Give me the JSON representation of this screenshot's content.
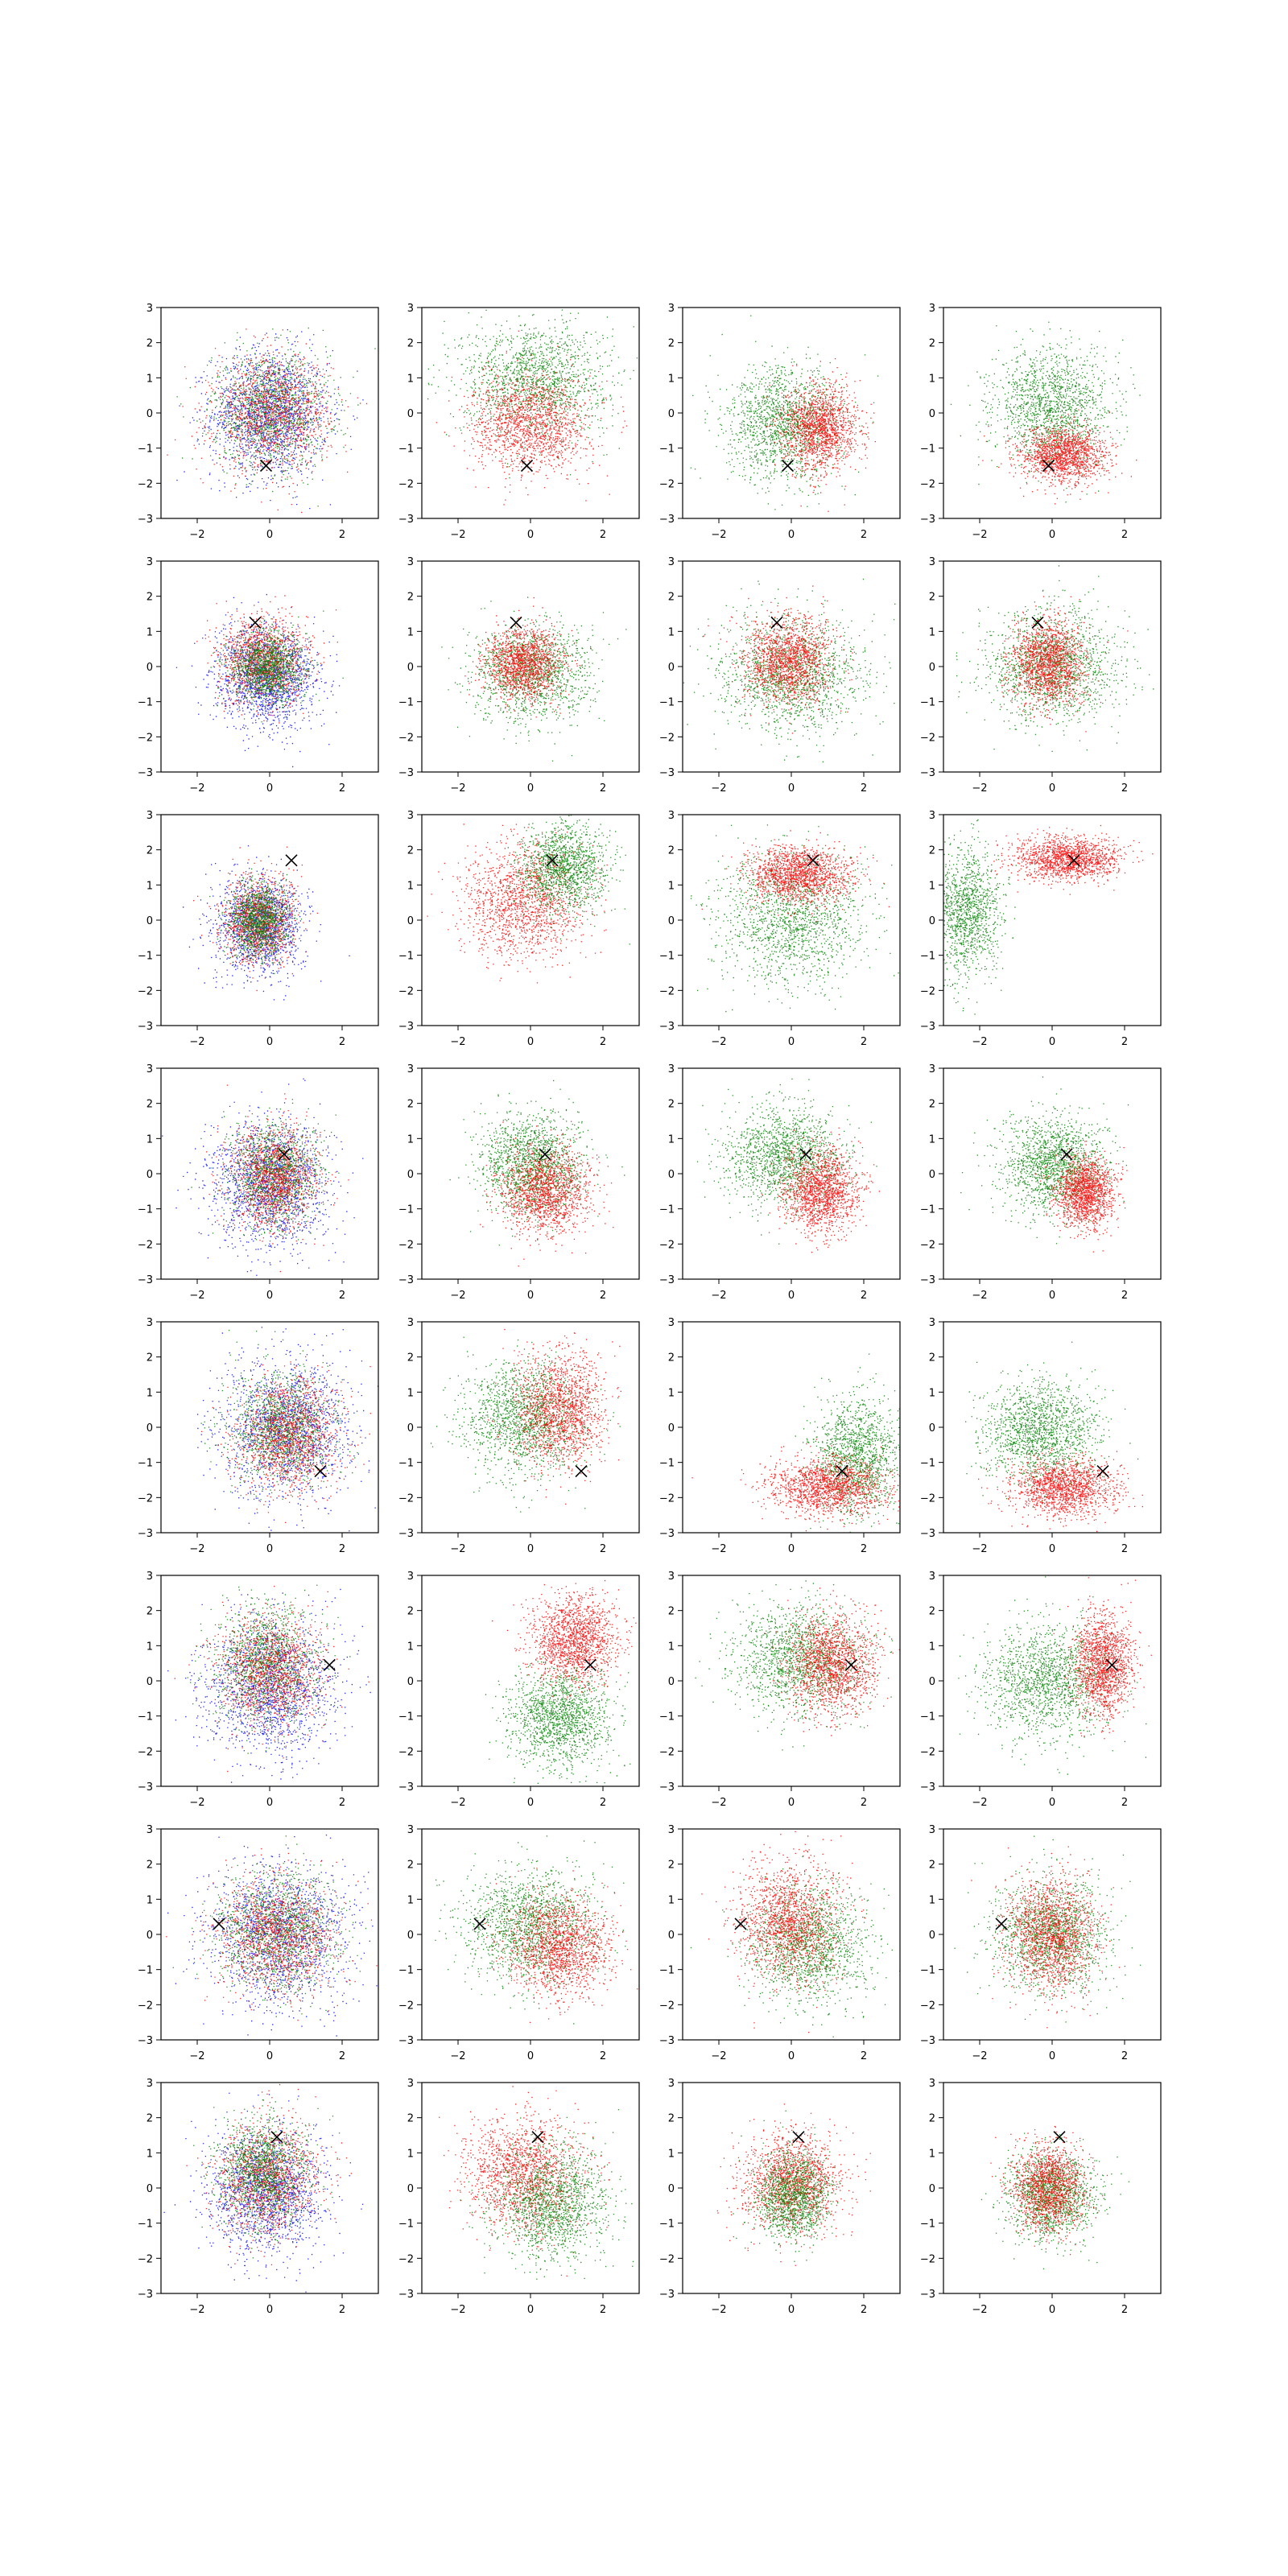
{
  "chart_data": {
    "type": "scatter",
    "layout": {
      "rows": 8,
      "cols": 4
    },
    "xlim": [
      -3,
      3
    ],
    "ylim": [
      -3,
      3
    ],
    "xticks": [
      -2,
      0,
      2
    ],
    "yticks": [
      -3,
      -2,
      -1,
      0,
      1,
      2,
      3
    ],
    "colors": {
      "red": "#ff0000",
      "green": "#008000",
      "blue": "#0000ff",
      "marker": "#000000"
    },
    "grid": false,
    "legend": "none",
    "marker": "x",
    "rows": [
      {
        "marker": [
          -0.1,
          -1.5
        ],
        "panels": [
          {
            "series": [
              {
                "color": "blue",
                "n": 1600,
                "cx": 0.0,
                "cy": 0.0,
                "sx": 0.8,
                "sy": 0.9
              },
              {
                "color": "green",
                "n": 1300,
                "cx": 0.0,
                "cy": 0.1,
                "sx": 0.8,
                "sy": 0.8
              },
              {
                "color": "red",
                "n": 1300,
                "cx": 0.05,
                "cy": 0.0,
                "sx": 0.8,
                "sy": 0.8
              }
            ]
          },
          {
            "series": [
              {
                "color": "green",
                "n": 1500,
                "cx": 0.1,
                "cy": 1.0,
                "sx": 1.0,
                "sy": 0.8
              },
              {
                "color": "red",
                "n": 1500,
                "cx": 0.0,
                "cy": -0.3,
                "sx": 0.8,
                "sy": 0.7
              }
            ]
          },
          {
            "series": [
              {
                "color": "green",
                "n": 1500,
                "cx": -0.2,
                "cy": -0.3,
                "sx": 0.8,
                "sy": 0.8
              },
              {
                "color": "red",
                "n": 1500,
                "cx": 0.8,
                "cy": -0.4,
                "sx": 0.5,
                "sy": 0.6
              }
            ]
          },
          {
            "series": [
              {
                "color": "green",
                "n": 1500,
                "cx": 0.0,
                "cy": 0.2,
                "sx": 0.8,
                "sy": 0.8
              },
              {
                "color": "red",
                "n": 1500,
                "cx": 0.3,
                "cy": -1.2,
                "sx": 0.6,
                "sy": 0.4
              }
            ]
          }
        ]
      },
      {
        "marker": [
          -0.4,
          1.25
        ],
        "panels": [
          {
            "series": [
              {
                "color": "blue",
                "n": 1500,
                "cx": -0.1,
                "cy": -0.3,
                "sx": 0.7,
                "sy": 0.7
              },
              {
                "color": "red",
                "n": 1300,
                "cx": -0.2,
                "cy": 0.2,
                "sx": 0.6,
                "sy": 0.6
              },
              {
                "color": "green",
                "n": 1300,
                "cx": -0.1,
                "cy": 0.0,
                "sx": 0.5,
                "sy": 0.5
              }
            ]
          },
          {
            "series": [
              {
                "color": "green",
                "n": 1400,
                "cx": 0.0,
                "cy": -0.2,
                "sx": 0.8,
                "sy": 0.7
              },
              {
                "color": "red",
                "n": 1400,
                "cx": -0.2,
                "cy": 0.1,
                "sx": 0.5,
                "sy": 0.5
              }
            ]
          },
          {
            "series": [
              {
                "color": "green",
                "n": 1500,
                "cx": 0.0,
                "cy": -0.2,
                "sx": 1.0,
                "sy": 0.8
              },
              {
                "color": "red",
                "n": 1500,
                "cx": -0.1,
                "cy": 0.2,
                "sx": 0.6,
                "sy": 0.6
              }
            ]
          },
          {
            "series": [
              {
                "color": "green",
                "n": 1500,
                "cx": 0.0,
                "cy": 0.0,
                "sx": 0.9,
                "sy": 0.8
              },
              {
                "color": "red",
                "n": 1500,
                "cx": -0.1,
                "cy": 0.1,
                "sx": 0.5,
                "sy": 0.6
              }
            ]
          }
        ]
      },
      {
        "marker": [
          0.6,
          1.7
        ],
        "panels": [
          {
            "series": [
              {
                "color": "blue",
                "n": 1400,
                "cx": -0.3,
                "cy": -0.1,
                "sx": 0.6,
                "sy": 0.7
              },
              {
                "color": "red",
                "n": 1200,
                "cx": -0.3,
                "cy": 0.0,
                "sx": 0.5,
                "sy": 0.6
              },
              {
                "color": "green",
                "n": 1200,
                "cx": -0.3,
                "cy": 0.0,
                "sx": 0.4,
                "sy": 0.5
              }
            ]
          },
          {
            "series": [
              {
                "color": "red",
                "n": 1500,
                "cx": -0.2,
                "cy": 0.6,
                "sx": 0.8,
                "sy": 0.8
              },
              {
                "color": "green",
                "n": 1400,
                "cx": 0.9,
                "cy": 1.5,
                "sx": 0.6,
                "sy": 0.6
              }
            ]
          },
          {
            "series": [
              {
                "color": "green",
                "n": 1500,
                "cx": 0.0,
                "cy": 0.0,
                "sx": 1.0,
                "sy": 0.9
              },
              {
                "color": "red",
                "n": 1500,
                "cx": 0.2,
                "cy": 1.3,
                "sx": 0.7,
                "sy": 0.4
              }
            ]
          },
          {
            "series": [
              {
                "color": "green",
                "n": 1300,
                "cx": -2.4,
                "cy": 0.2,
                "sx": 0.5,
                "sy": 0.9
              },
              {
                "color": "red",
                "n": 1500,
                "cx": 0.4,
                "cy": 1.75,
                "sx": 0.7,
                "sy": 0.3
              }
            ]
          }
        ]
      },
      {
        "marker": [
          0.4,
          0.55
        ],
        "panels": [
          {
            "series": [
              {
                "color": "blue",
                "n": 1500,
                "cx": 0.0,
                "cy": -0.3,
                "sx": 0.8,
                "sy": 0.9
              },
              {
                "color": "green",
                "n": 1300,
                "cx": 0.1,
                "cy": 0.0,
                "sx": 0.6,
                "sy": 0.7
              },
              {
                "color": "red",
                "n": 1300,
                "cx": 0.1,
                "cy": -0.1,
                "sx": 0.6,
                "sy": 0.7
              }
            ]
          },
          {
            "series": [
              {
                "color": "green",
                "n": 1500,
                "cx": 0.0,
                "cy": 0.3,
                "sx": 0.7,
                "sy": 0.7
              },
              {
                "color": "red",
                "n": 1500,
                "cx": 0.4,
                "cy": -0.5,
                "sx": 0.6,
                "sy": 0.6
              }
            ]
          },
          {
            "series": [
              {
                "color": "green",
                "n": 1500,
                "cx": -0.2,
                "cy": 0.5,
                "sx": 0.8,
                "sy": 0.7
              },
              {
                "color": "red",
                "n": 1500,
                "cx": 0.8,
                "cy": -0.5,
                "sx": 0.5,
                "sy": 0.6
              }
            ]
          },
          {
            "series": [
              {
                "color": "green",
                "n": 1500,
                "cx": 0.0,
                "cy": 0.3,
                "sx": 0.7,
                "sy": 0.7
              },
              {
                "color": "red",
                "n": 1500,
                "cx": 0.9,
                "cy": -0.5,
                "sx": 0.4,
                "sy": 0.5
              }
            ]
          }
        ]
      },
      {
        "marker": [
          1.4,
          -1.25
        ],
        "panels": [
          {
            "series": [
              {
                "color": "blue",
                "n": 1500,
                "cx": 0.5,
                "cy": 0.0,
                "sx": 0.9,
                "sy": 1.0
              },
              {
                "color": "green",
                "n": 1300,
                "cx": 0.3,
                "cy": 0.0,
                "sx": 0.7,
                "sy": 0.8
              },
              {
                "color": "red",
                "n": 1300,
                "cx": 0.5,
                "cy": -0.2,
                "sx": 0.7,
                "sy": 0.8
              }
            ]
          },
          {
            "series": [
              {
                "color": "green",
                "n": 1500,
                "cx": -0.2,
                "cy": 0.3,
                "sx": 0.8,
                "sy": 0.8
              },
              {
                "color": "red",
                "n": 1500,
                "cx": 0.8,
                "cy": 0.5,
                "sx": 0.6,
                "sy": 0.8
              }
            ]
          },
          {
            "series": [
              {
                "color": "green",
                "n": 1400,
                "cx": 1.8,
                "cy": -0.8,
                "sx": 0.6,
                "sy": 0.8
              },
              {
                "color": "red",
                "n": 1500,
                "cx": 1.0,
                "cy": -1.7,
                "sx": 0.8,
                "sy": 0.4
              }
            ]
          },
          {
            "series": [
              {
                "color": "green",
                "n": 1500,
                "cx": -0.3,
                "cy": -0.1,
                "sx": 0.8,
                "sy": 0.7
              },
              {
                "color": "red",
                "n": 1500,
                "cx": 0.3,
                "cy": -1.7,
                "sx": 0.7,
                "sy": 0.4
              }
            ]
          }
        ]
      },
      {
        "marker": [
          1.65,
          0.45
        ],
        "panels": [
          {
            "series": [
              {
                "color": "blue",
                "n": 1500,
                "cx": 0.0,
                "cy": -0.2,
                "sx": 0.9,
                "sy": 1.0
              },
              {
                "color": "green",
                "n": 1300,
                "cx": -0.1,
                "cy": 0.5,
                "sx": 0.7,
                "sy": 0.8
              },
              {
                "color": "red",
                "n": 1300,
                "cx": 0.0,
                "cy": 0.3,
                "sx": 0.7,
                "sy": 0.8
              }
            ]
          },
          {
            "series": [
              {
                "color": "green",
                "n": 1500,
                "cx": 0.8,
                "cy": -1.0,
                "sx": 0.7,
                "sy": 0.7
              },
              {
                "color": "red",
                "n": 1500,
                "cx": 1.2,
                "cy": 1.2,
                "sx": 0.6,
                "sy": 0.6
              }
            ]
          },
          {
            "series": [
              {
                "color": "green",
                "n": 1500,
                "cx": 0.2,
                "cy": 0.6,
                "sx": 0.9,
                "sy": 0.8
              },
              {
                "color": "red",
                "n": 1500,
                "cx": 1.1,
                "cy": 0.5,
                "sx": 0.6,
                "sy": 0.7
              }
            ]
          },
          {
            "series": [
              {
                "color": "green",
                "n": 1500,
                "cx": -0.2,
                "cy": 0.0,
                "sx": 0.9,
                "sy": 0.8
              },
              {
                "color": "red",
                "n": 1500,
                "cx": 1.4,
                "cy": 0.5,
                "sx": 0.4,
                "sy": 0.7
              }
            ]
          }
        ]
      },
      {
        "marker": [
          -1.4,
          0.3
        ],
        "panels": [
          {
            "series": [
              {
                "color": "blue",
                "n": 1500,
                "cx": 0.3,
                "cy": 0.0,
                "sx": 1.0,
                "sy": 1.0
              },
              {
                "color": "green",
                "n": 1300,
                "cx": 0.2,
                "cy": 0.1,
                "sx": 0.8,
                "sy": 0.8
              },
              {
                "color": "red",
                "n": 1300,
                "cx": 0.2,
                "cy": 0.0,
                "sx": 0.8,
                "sy": 0.8
              }
            ]
          },
          {
            "series": [
              {
                "color": "green",
                "n": 1500,
                "cx": 0.0,
                "cy": 0.3,
                "sx": 0.9,
                "sy": 0.8
              },
              {
                "color": "red",
                "n": 1500,
                "cx": 0.8,
                "cy": -0.3,
                "sx": 0.7,
                "sy": 0.7
              }
            ]
          },
          {
            "series": [
              {
                "color": "green",
                "n": 1500,
                "cx": 0.5,
                "cy": -0.3,
                "sx": 0.8,
                "sy": 0.8
              },
              {
                "color": "red",
                "n": 1500,
                "cx": -0.1,
                "cy": 0.4,
                "sx": 0.7,
                "sy": 0.8
              }
            ]
          },
          {
            "series": [
              {
                "color": "green",
                "n": 1500,
                "cx": 0.0,
                "cy": 0.0,
                "sx": 0.8,
                "sy": 0.8
              },
              {
                "color": "red",
                "n": 1500,
                "cx": 0.0,
                "cy": 0.0,
                "sx": 0.6,
                "sy": 0.8
              }
            ]
          }
        ]
      },
      {
        "marker": [
          0.2,
          1.45
        ],
        "panels": [
          {
            "series": [
              {
                "color": "blue",
                "n": 1500,
                "cx": -0.1,
                "cy": -0.1,
                "sx": 0.8,
                "sy": 0.9
              },
              {
                "color": "red",
                "n": 1300,
                "cx": -0.1,
                "cy": 0.3,
                "sx": 0.7,
                "sy": 0.8
              },
              {
                "color": "green",
                "n": 1300,
                "cx": -0.2,
                "cy": 0.5,
                "sx": 0.6,
                "sy": 0.7
              }
            ]
          },
          {
            "series": [
              {
                "color": "red",
                "n": 1500,
                "cx": -0.2,
                "cy": 0.4,
                "sx": 0.8,
                "sy": 0.8
              },
              {
                "color": "green",
                "n": 1500,
                "cx": 0.6,
                "cy": -0.4,
                "sx": 0.8,
                "sy": 0.8
              }
            ]
          },
          {
            "series": [
              {
                "color": "red",
                "n": 1500,
                "cx": 0.0,
                "cy": 0.2,
                "sx": 0.7,
                "sy": 0.7
              },
              {
                "color": "green",
                "n": 1300,
                "cx": 0.0,
                "cy": -0.2,
                "sx": 0.5,
                "sy": 0.6
              }
            ]
          },
          {
            "series": [
              {
                "color": "green",
                "n": 1400,
                "cx": 0.0,
                "cy": -0.2,
                "sx": 0.6,
                "sy": 0.6
              },
              {
                "color": "red",
                "n": 1400,
                "cx": -0.1,
                "cy": 0.0,
                "sx": 0.5,
                "sy": 0.6
              }
            ]
          }
        ]
      }
    ]
  }
}
